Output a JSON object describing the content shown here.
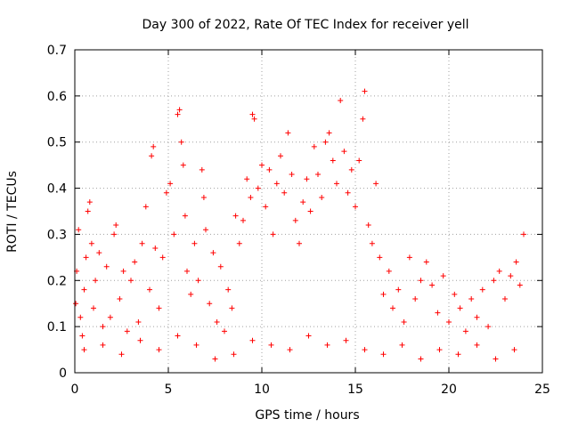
{
  "chart_data": {
    "type": "scatter",
    "title": "Day 300 of 2022, Rate Of TEC Index for receiver yell",
    "xlabel": "GPS time / hours",
    "ylabel": "ROTI / TECUs",
    "xlim": [
      0,
      25
    ],
    "ylim": [
      0,
      0.7
    ],
    "xticks": [
      "0",
      "5",
      "10",
      "15",
      "20",
      "25"
    ],
    "yticks": [
      "0",
      "0.1",
      "0.2",
      "0.3",
      "0.4",
      "0.5",
      "0.6",
      "0.7"
    ],
    "grid": true,
    "marker": "plus",
    "color": "#ff0000",
    "points": [
      [
        0.05,
        0.15
      ],
      [
        0.1,
        0.22
      ],
      [
        0.2,
        0.31
      ],
      [
        0.3,
        0.12
      ],
      [
        0.4,
        0.08
      ],
      [
        0.5,
        0.18
      ],
      [
        0.6,
        0.25
      ],
      [
        0.7,
        0.35
      ],
      [
        0.8,
        0.37
      ],
      [
        0.9,
        0.28
      ],
      [
        1.0,
        0.14
      ],
      [
        1.1,
        0.2
      ],
      [
        1.3,
        0.26
      ],
      [
        1.5,
        0.1
      ],
      [
        1.7,
        0.23
      ],
      [
        1.9,
        0.12
      ],
      [
        2.1,
        0.3
      ],
      [
        2.2,
        0.32
      ],
      [
        2.4,
        0.16
      ],
      [
        2.6,
        0.22
      ],
      [
        2.8,
        0.09
      ],
      [
        3.0,
        0.2
      ],
      [
        3.2,
        0.24
      ],
      [
        3.4,
        0.11
      ],
      [
        3.6,
        0.28
      ],
      [
        3.8,
        0.36
      ],
      [
        4.0,
        0.18
      ],
      [
        4.1,
        0.47
      ],
      [
        4.2,
        0.49
      ],
      [
        4.3,
        0.27
      ],
      [
        4.5,
        0.14
      ],
      [
        4.7,
        0.25
      ],
      [
        4.9,
        0.39
      ],
      [
        5.1,
        0.41
      ],
      [
        5.3,
        0.3
      ],
      [
        5.5,
        0.56
      ],
      [
        5.6,
        0.57
      ],
      [
        5.7,
        0.5
      ],
      [
        5.8,
        0.45
      ],
      [
        5.9,
        0.34
      ],
      [
        6.0,
        0.22
      ],
      [
        6.2,
        0.17
      ],
      [
        6.4,
        0.28
      ],
      [
        6.6,
        0.2
      ],
      [
        6.8,
        0.44
      ],
      [
        6.9,
        0.38
      ],
      [
        7.0,
        0.31
      ],
      [
        7.2,
        0.15
      ],
      [
        7.4,
        0.26
      ],
      [
        7.6,
        0.11
      ],
      [
        7.8,
        0.23
      ],
      [
        8.0,
        0.09
      ],
      [
        8.2,
        0.18
      ],
      [
        8.4,
        0.14
      ],
      [
        8.6,
        0.34
      ],
      [
        8.8,
        0.28
      ],
      [
        9.0,
        0.33
      ],
      [
        9.2,
        0.42
      ],
      [
        9.4,
        0.38
      ],
      [
        9.5,
        0.56
      ],
      [
        9.6,
        0.55
      ],
      [
        9.8,
        0.4
      ],
      [
        10.0,
        0.45
      ],
      [
        10.2,
        0.36
      ],
      [
        10.4,
        0.44
      ],
      [
        10.6,
        0.3
      ],
      [
        10.8,
        0.41
      ],
      [
        11.0,
        0.47
      ],
      [
        11.2,
        0.39
      ],
      [
        11.4,
        0.52
      ],
      [
        11.6,
        0.43
      ],
      [
        11.8,
        0.33
      ],
      [
        12.0,
        0.28
      ],
      [
        12.2,
        0.37
      ],
      [
        12.4,
        0.42
      ],
      [
        12.6,
        0.35
      ],
      [
        12.8,
        0.49
      ],
      [
        13.0,
        0.43
      ],
      [
        13.2,
        0.38
      ],
      [
        13.4,
        0.5
      ],
      [
        13.6,
        0.52
      ],
      [
        13.8,
        0.46
      ],
      [
        14.0,
        0.41
      ],
      [
        14.2,
        0.59
      ],
      [
        14.4,
        0.48
      ],
      [
        14.6,
        0.39
      ],
      [
        14.8,
        0.44
      ],
      [
        15.0,
        0.36
      ],
      [
        15.2,
        0.46
      ],
      [
        15.4,
        0.55
      ],
      [
        15.5,
        0.61
      ],
      [
        15.7,
        0.32
      ],
      [
        15.9,
        0.28
      ],
      [
        16.1,
        0.41
      ],
      [
        16.3,
        0.25
      ],
      [
        16.5,
        0.17
      ],
      [
        16.8,
        0.22
      ],
      [
        17.0,
        0.14
      ],
      [
        17.3,
        0.18
      ],
      [
        17.6,
        0.11
      ],
      [
        17.9,
        0.25
      ],
      [
        18.2,
        0.16
      ],
      [
        18.5,
        0.2
      ],
      [
        18.8,
        0.24
      ],
      [
        19.1,
        0.19
      ],
      [
        19.4,
        0.13
      ],
      [
        19.7,
        0.21
      ],
      [
        20.0,
        0.11
      ],
      [
        20.3,
        0.17
      ],
      [
        20.6,
        0.14
      ],
      [
        20.9,
        0.09
      ],
      [
        21.2,
        0.16
      ],
      [
        21.5,
        0.12
      ],
      [
        21.8,
        0.18
      ],
      [
        22.1,
        0.1
      ],
      [
        22.4,
        0.2
      ],
      [
        22.7,
        0.22
      ],
      [
        23.0,
        0.16
      ],
      [
        23.3,
        0.21
      ],
      [
        23.6,
        0.24
      ],
      [
        23.8,
        0.19
      ],
      [
        24.0,
        0.3
      ],
      [
        0.5,
        0.05
      ],
      [
        1.5,
        0.06
      ],
      [
        2.5,
        0.04
      ],
      [
        3.5,
        0.07
      ],
      [
        4.5,
        0.05
      ],
      [
        5.5,
        0.08
      ],
      [
        6.5,
        0.06
      ],
      [
        7.5,
        0.03
      ],
      [
        8.5,
        0.04
      ],
      [
        9.5,
        0.07
      ],
      [
        10.5,
        0.06
      ],
      [
        11.5,
        0.05
      ],
      [
        12.5,
        0.08
      ],
      [
        13.5,
        0.06
      ],
      [
        14.5,
        0.07
      ],
      [
        15.5,
        0.05
      ],
      [
        16.5,
        0.04
      ],
      [
        17.5,
        0.06
      ],
      [
        18.5,
        0.03
      ],
      [
        19.5,
        0.05
      ],
      [
        20.5,
        0.04
      ],
      [
        21.5,
        0.06
      ],
      [
        22.5,
        0.03
      ],
      [
        23.5,
        0.05
      ]
    ]
  }
}
